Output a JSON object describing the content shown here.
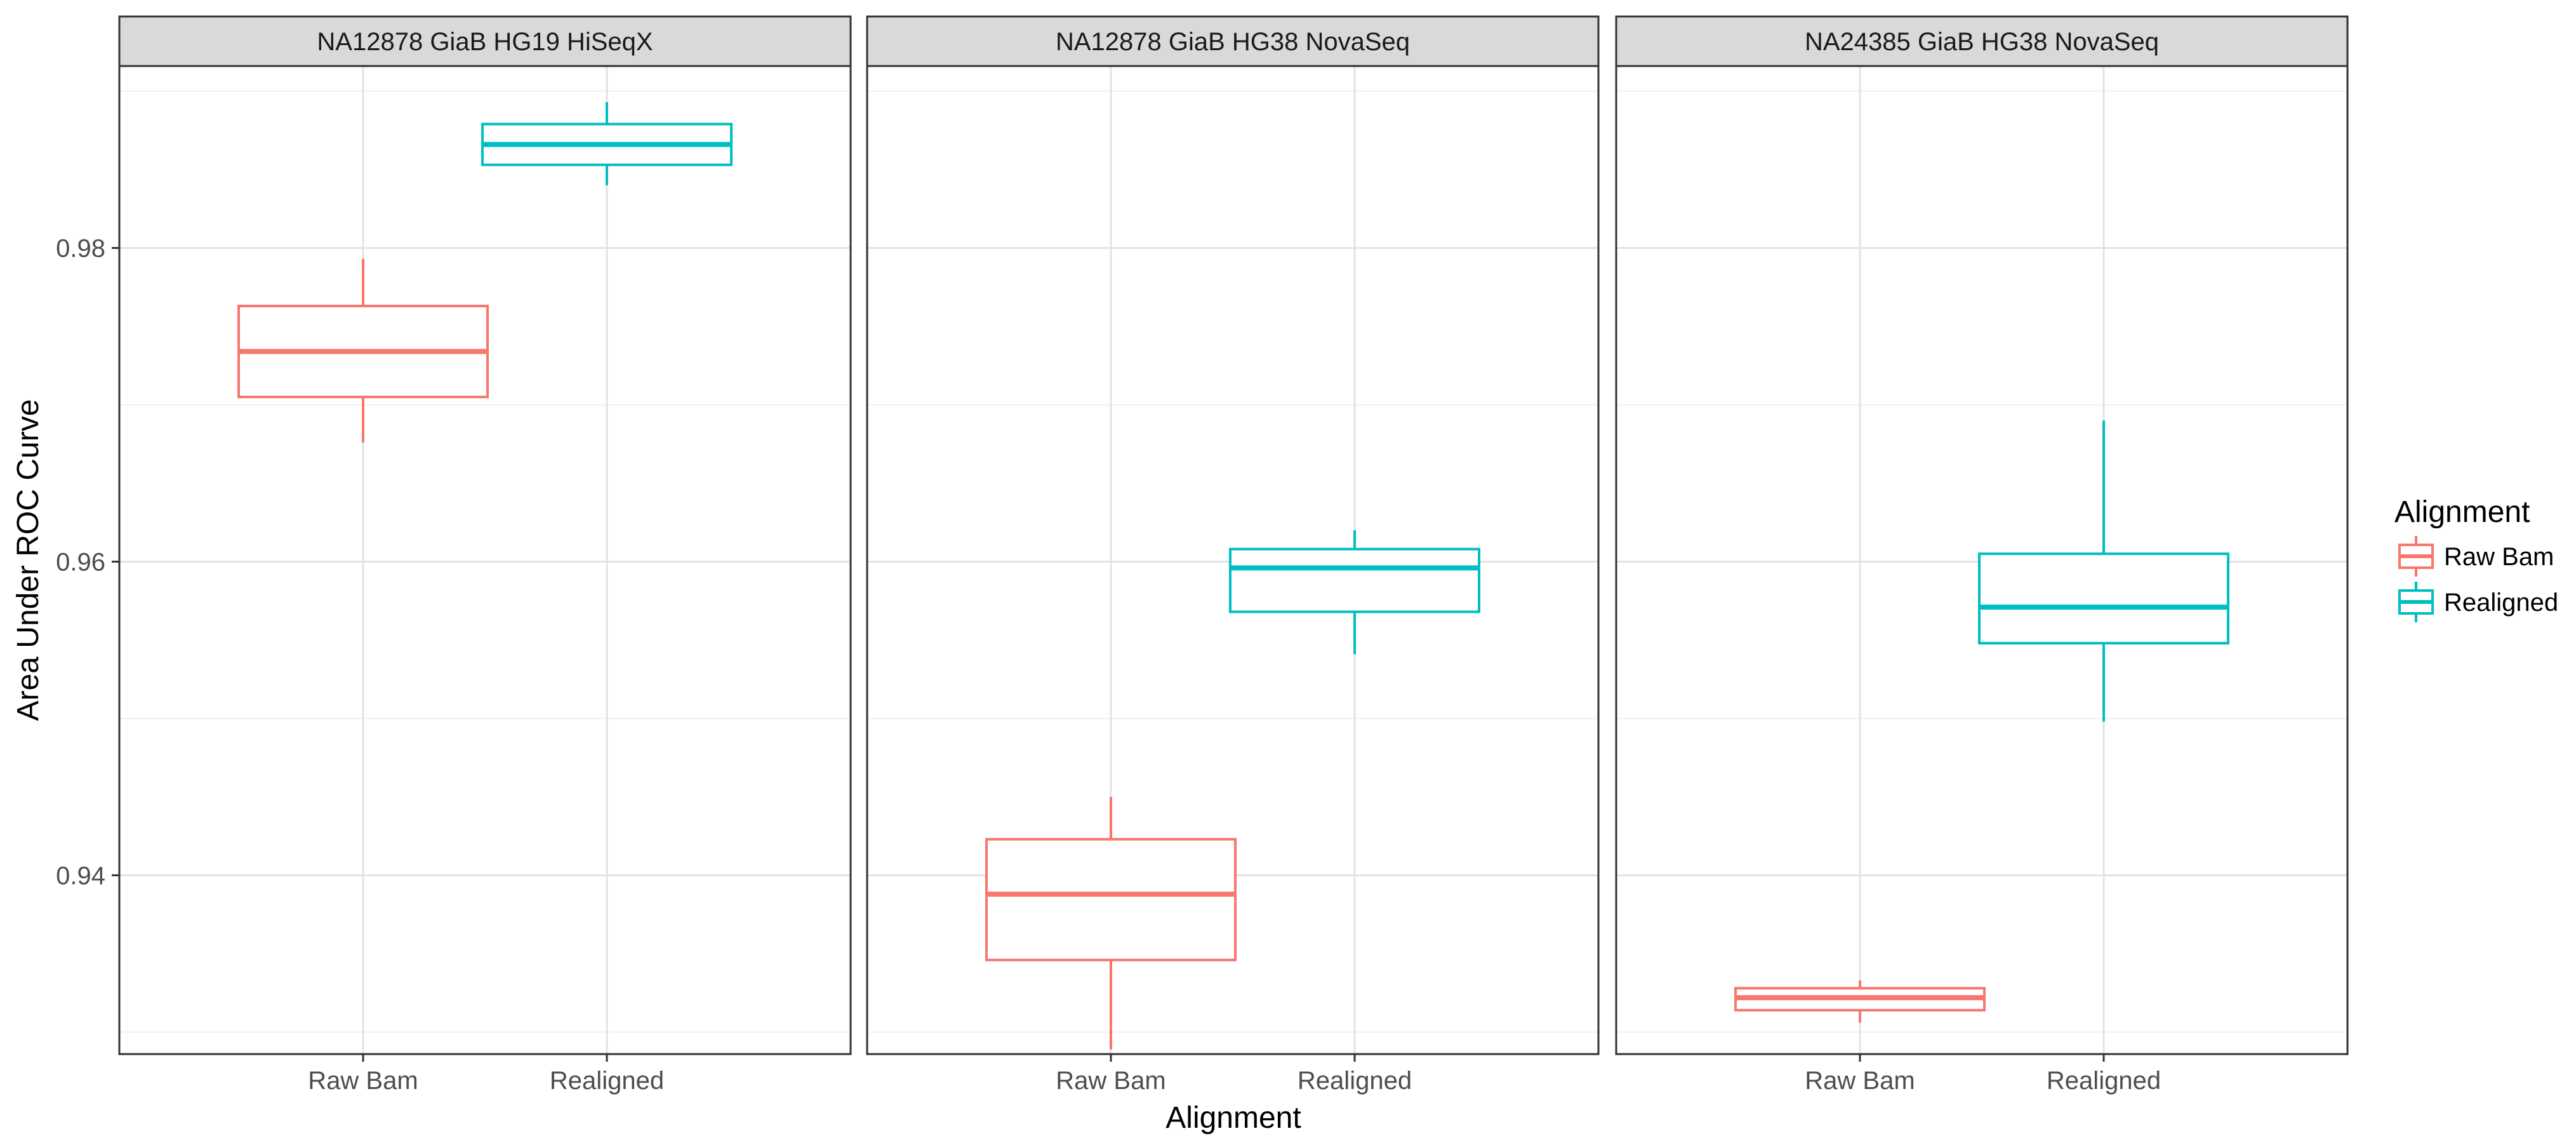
{
  "chart_data": {
    "type": "boxplot",
    "ylabel": "Area Under ROC Curve",
    "xlabel": "Alignment",
    "ylim": [
      0.9286,
      0.9916
    ],
    "yticks": [
      0.94,
      0.96,
      0.98
    ],
    "ytick_labels": [
      "0.94",
      "0.96",
      "0.98"
    ],
    "y_minor_ticks": [
      0.93,
      0.95,
      0.97,
      0.99
    ],
    "categories": [
      "Raw Bam",
      "Realigned"
    ],
    "grid": true,
    "legend": {
      "title": "Alignment",
      "placement": "right",
      "entries": [
        {
          "label": "Raw Bam",
          "color": "#F8766D"
        },
        {
          "label": "Realigned",
          "color": "#00BFC4"
        }
      ]
    },
    "colors": {
      "Raw Bam": "#F8766D",
      "Realigned": "#00BFC4"
    },
    "panels": [
      {
        "title": "NA12878 GiaB HG19 HiSeqX",
        "boxes": [
          {
            "category": "Raw Bam",
            "whisker_low": 0.9676,
            "q1": 0.9705,
            "median": 0.9734,
            "q3": 0.9763,
            "whisker_high": 0.9793
          },
          {
            "category": "Realigned",
            "whisker_low": 0.984,
            "q1": 0.9853,
            "median": 0.9866,
            "q3": 0.9879,
            "whisker_high": 0.9893
          }
        ]
      },
      {
        "title": "NA12878 GiaB HG38 NovaSeq",
        "boxes": [
          {
            "category": "Raw Bam",
            "whisker_low": 0.9289,
            "q1": 0.9346,
            "median": 0.9388,
            "q3": 0.9423,
            "whisker_high": 0.945
          },
          {
            "category": "Realigned",
            "whisker_low": 0.9541,
            "q1": 0.9568,
            "median": 0.9596,
            "q3": 0.9608,
            "whisker_high": 0.962
          }
        ]
      },
      {
        "title": "NA24385 GiaB HG38 NovaSeq",
        "boxes": [
          {
            "category": "Raw Bam",
            "whisker_low": 0.9306,
            "q1": 0.9314,
            "median": 0.9322,
            "q3": 0.9328,
            "whisker_high": 0.9333
          },
          {
            "category": "Realigned",
            "whisker_low": 0.9498,
            "q1": 0.9548,
            "median": 0.9571,
            "q3": 0.9605,
            "whisker_high": 0.969
          }
        ]
      }
    ]
  }
}
